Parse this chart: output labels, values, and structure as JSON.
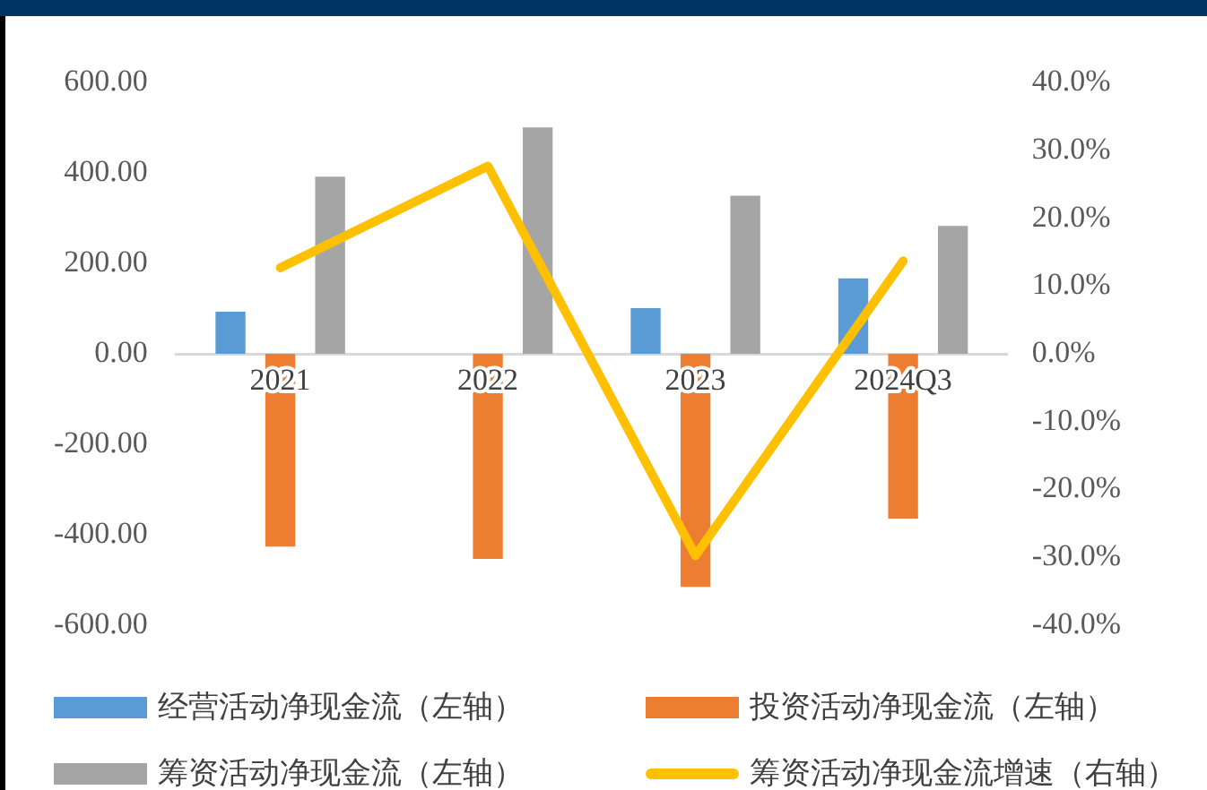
{
  "chart_data": {
    "type": "bar",
    "categories": [
      "2021",
      "2022",
      "2023",
      "2024Q3"
    ],
    "series": [
      {
        "name": "经营活动净现金流（左轴）",
        "color": "#5b9bd5",
        "values": [
          93,
          0,
          101,
          167
        ]
      },
      {
        "name": "投资活动净现金流（左轴）",
        "color": "#ed7d31",
        "values": [
          -427,
          -454,
          -516,
          -365
        ]
      },
      {
        "name": "筹资活动净现金流（左轴）",
        "color": "#a5a5a5",
        "values": [
          392,
          501,
          350,
          283
        ]
      },
      {
        "name": "筹资活动净现金流增速（右轴）",
        "color": "#ffc000",
        "type": "line",
        "axis": "y2",
        "values": [
          12.7,
          27.7,
          -29.8,
          13.7
        ]
      }
    ],
    "ylim": [
      -600,
      600
    ],
    "yticks": [
      {
        "value": -600,
        "label": "-600.00"
      },
      {
        "value": -400,
        "label": "-400.00"
      },
      {
        "value": -200,
        "label": "-200.00"
      },
      {
        "value": 0,
        "label": "0.00"
      },
      {
        "value": 200,
        "label": "200.00"
      },
      {
        "value": 400,
        "label": "400.00"
      },
      {
        "value": 600,
        "label": "600.00"
      }
    ],
    "y2lim": [
      -40,
      40
    ],
    "y2ticks": [
      {
        "value": -40,
        "label": "-40.0%"
      },
      {
        "value": -30,
        "label": "-30.0%"
      },
      {
        "value": -20,
        "label": "-20.0%"
      },
      {
        "value": -10,
        "label": "-10.0%"
      },
      {
        "value": 0,
        "label": "0.0%"
      },
      {
        "value": 10,
        "label": "10.0%"
      },
      {
        "value": 20,
        "label": "20.0%"
      },
      {
        "value": 30,
        "label": "30.0%"
      },
      {
        "value": 40,
        "label": "40.0%"
      }
    ],
    "grid": false,
    "legend": "bottom",
    "marker": "none"
  }
}
